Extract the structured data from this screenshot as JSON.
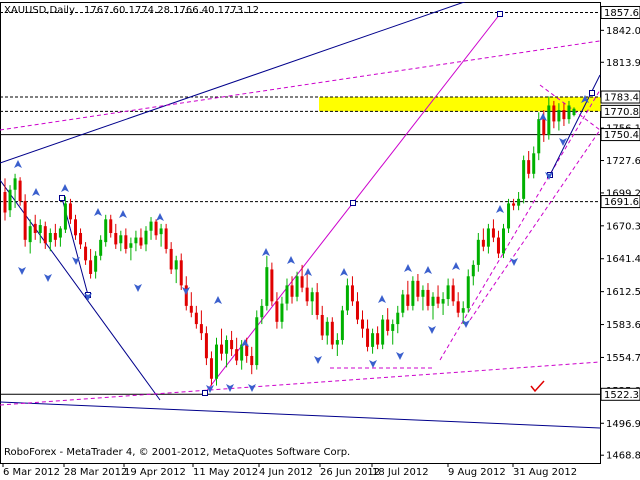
{
  "chart_data": {
    "type": "candlestick",
    "header": {
      "symbol": "XAUUSD,Daily",
      "ohlc": "1767.60 1774.28 1766.40 1773.12"
    },
    "footer": "RoboForex - MetaTrader 4, © 2001-2012, MetaQuotes Software Corp.",
    "ylim": [
      1462,
      1866
    ],
    "y_ticks": [
      1857.67,
      1842.0,
      1813.95,
      1783.42,
      1770.81,
      1756.15,
      1750.44,
      1727.65,
      1699.2,
      1691.6,
      1670.3,
      1641.4,
      1612.5,
      1583.6,
      1554.7,
      1525.8,
      1522.34,
      1496.9,
      1468.85
    ],
    "price_labels": [
      {
        "value": 1857.67,
        "color": "#ffffff"
      },
      {
        "value": 1783.42,
        "color": "#ffffff"
      },
      {
        "value": 1770.81,
        "color": "#ffffff"
      },
      {
        "value": 1750.44,
        "color": "#ffffff"
      },
      {
        "value": 1691.6,
        "color": "#ffffff"
      },
      {
        "value": 1522.34,
        "color": "#ffffff"
      }
    ],
    "x_labels": [
      "6 Mar 2012",
      "28 Mar 2012",
      "19 Apr 2012",
      "11 May 2012",
      "4 Jun 2012",
      "26 Jun 2012",
      "18 Jul 2012",
      "9 Aug 2012",
      "31 Aug 2012"
    ],
    "horizontal_levels": [
      {
        "value": 1857.67,
        "style": "dashed"
      },
      {
        "value": 1783.42,
        "style": "dashed"
      },
      {
        "value": 1770.81,
        "style": "dashed"
      },
      {
        "value": 1750.44,
        "style": "solid"
      },
      {
        "value": 1691.6,
        "style": "dashed"
      },
      {
        "value": 1522.34,
        "style": "solid"
      }
    ],
    "target_zone": {
      "from": 1770.81,
      "to": 1783.42,
      "color": "#ffff00"
    },
    "candles": [
      {
        "o": 1700,
        "h": 1712,
        "l": 1675,
        "c": 1682
      },
      {
        "o": 1684,
        "h": 1706,
        "l": 1678,
        "c": 1702
      },
      {
        "o": 1702,
        "h": 1716,
        "l": 1686,
        "c": 1712
      },
      {
        "o": 1710,
        "h": 1713,
        "l": 1688,
        "c": 1692
      },
      {
        "o": 1692,
        "h": 1698,
        "l": 1652,
        "c": 1658
      },
      {
        "o": 1656,
        "h": 1676,
        "l": 1646,
        "c": 1670
      },
      {
        "o": 1672,
        "h": 1680,
        "l": 1658,
        "c": 1664
      },
      {
        "o": 1664,
        "h": 1676,
        "l": 1655,
        "c": 1671
      },
      {
        "o": 1670,
        "h": 1674,
        "l": 1650,
        "c": 1655
      },
      {
        "o": 1656,
        "h": 1668,
        "l": 1648,
        "c": 1664
      },
      {
        "o": 1664,
        "h": 1672,
        "l": 1652,
        "c": 1658
      },
      {
        "o": 1660,
        "h": 1670,
        "l": 1652,
        "c": 1668
      },
      {
        "o": 1667,
        "h": 1696,
        "l": 1664,
        "c": 1690
      },
      {
        "o": 1690,
        "h": 1694,
        "l": 1672,
        "c": 1676
      },
      {
        "o": 1676,
        "h": 1680,
        "l": 1658,
        "c": 1662
      },
      {
        "o": 1664,
        "h": 1668,
        "l": 1650,
        "c": 1654
      },
      {
        "o": 1652,
        "h": 1656,
        "l": 1636,
        "c": 1640
      },
      {
        "o": 1640,
        "h": 1650,
        "l": 1624,
        "c": 1628
      },
      {
        "o": 1630,
        "h": 1648,
        "l": 1624,
        "c": 1644
      },
      {
        "o": 1644,
        "h": 1662,
        "l": 1640,
        "c": 1658
      },
      {
        "o": 1656,
        "h": 1680,
        "l": 1652,
        "c": 1676
      },
      {
        "o": 1676,
        "h": 1680,
        "l": 1660,
        "c": 1664
      },
      {
        "o": 1664,
        "h": 1672,
        "l": 1650,
        "c": 1654
      },
      {
        "o": 1655,
        "h": 1666,
        "l": 1648,
        "c": 1662
      },
      {
        "o": 1662,
        "h": 1668,
        "l": 1646,
        "c": 1650
      },
      {
        "o": 1651,
        "h": 1660,
        "l": 1640,
        "c": 1655
      },
      {
        "o": 1655,
        "h": 1666,
        "l": 1648,
        "c": 1660
      },
      {
        "o": 1660,
        "h": 1668,
        "l": 1650,
        "c": 1653
      },
      {
        "o": 1654,
        "h": 1670,
        "l": 1648,
        "c": 1666
      },
      {
        "o": 1666,
        "h": 1678,
        "l": 1658,
        "c": 1674
      },
      {
        "o": 1674,
        "h": 1676,
        "l": 1658,
        "c": 1662
      },
      {
        "o": 1663,
        "h": 1672,
        "l": 1652,
        "c": 1668
      },
      {
        "o": 1668,
        "h": 1672,
        "l": 1646,
        "c": 1650
      },
      {
        "o": 1650,
        "h": 1656,
        "l": 1628,
        "c": 1632
      },
      {
        "o": 1632,
        "h": 1644,
        "l": 1620,
        "c": 1640
      },
      {
        "o": 1640,
        "h": 1646,
        "l": 1614,
        "c": 1618
      },
      {
        "o": 1618,
        "h": 1626,
        "l": 1596,
        "c": 1600
      },
      {
        "o": 1600,
        "h": 1612,
        "l": 1590,
        "c": 1594
      },
      {
        "o": 1594,
        "h": 1600,
        "l": 1580,
        "c": 1584
      },
      {
        "o": 1584,
        "h": 1596,
        "l": 1570,
        "c": 1576
      },
      {
        "o": 1576,
        "h": 1582,
        "l": 1548,
        "c": 1554
      },
      {
        "o": 1554,
        "h": 1560,
        "l": 1530,
        "c": 1536
      },
      {
        "o": 1536,
        "h": 1572,
        "l": 1530,
        "c": 1566
      },
      {
        "o": 1566,
        "h": 1580,
        "l": 1552,
        "c": 1558
      },
      {
        "o": 1558,
        "h": 1574,
        "l": 1546,
        "c": 1570
      },
      {
        "o": 1570,
        "h": 1578,
        "l": 1556,
        "c": 1562
      },
      {
        "o": 1562,
        "h": 1572,
        "l": 1548,
        "c": 1552
      },
      {
        "o": 1552,
        "h": 1570,
        "l": 1544,
        "c": 1566
      },
      {
        "o": 1566,
        "h": 1572,
        "l": 1550,
        "c": 1556
      },
      {
        "o": 1556,
        "h": 1564,
        "l": 1540,
        "c": 1548
      },
      {
        "o": 1548,
        "h": 1596,
        "l": 1544,
        "c": 1590
      },
      {
        "o": 1590,
        "h": 1606,
        "l": 1584,
        "c": 1600
      },
      {
        "o": 1600,
        "h": 1644,
        "l": 1596,
        "c": 1634
      },
      {
        "o": 1632,
        "h": 1638,
        "l": 1600,
        "c": 1604
      },
      {
        "o": 1604,
        "h": 1612,
        "l": 1580,
        "c": 1586
      },
      {
        "o": 1586,
        "h": 1608,
        "l": 1580,
        "c": 1602
      },
      {
        "o": 1602,
        "h": 1624,
        "l": 1596,
        "c": 1618
      },
      {
        "o": 1618,
        "h": 1626,
        "l": 1602,
        "c": 1608
      },
      {
        "o": 1608,
        "h": 1630,
        "l": 1604,
        "c": 1626
      },
      {
        "o": 1626,
        "h": 1636,
        "l": 1612,
        "c": 1616
      },
      {
        "o": 1616,
        "h": 1628,
        "l": 1600,
        "c": 1604
      },
      {
        "o": 1604,
        "h": 1616,
        "l": 1592,
        "c": 1612
      },
      {
        "o": 1612,
        "h": 1620,
        "l": 1588,
        "c": 1592
      },
      {
        "o": 1592,
        "h": 1600,
        "l": 1570,
        "c": 1574
      },
      {
        "o": 1574,
        "h": 1590,
        "l": 1566,
        "c": 1586
      },
      {
        "o": 1586,
        "h": 1590,
        "l": 1562,
        "c": 1566
      },
      {
        "o": 1566,
        "h": 1576,
        "l": 1556,
        "c": 1570
      },
      {
        "o": 1570,
        "h": 1600,
        "l": 1566,
        "c": 1596
      },
      {
        "o": 1596,
        "h": 1624,
        "l": 1592,
        "c": 1618
      },
      {
        "o": 1618,
        "h": 1626,
        "l": 1600,
        "c": 1604
      },
      {
        "o": 1604,
        "h": 1612,
        "l": 1584,
        "c": 1588
      },
      {
        "o": 1588,
        "h": 1596,
        "l": 1572,
        "c": 1580
      },
      {
        "o": 1580,
        "h": 1588,
        "l": 1560,
        "c": 1564
      },
      {
        "o": 1564,
        "h": 1580,
        "l": 1558,
        "c": 1576
      },
      {
        "o": 1576,
        "h": 1582,
        "l": 1562,
        "c": 1566
      },
      {
        "o": 1566,
        "h": 1592,
        "l": 1562,
        "c": 1588
      },
      {
        "o": 1588,
        "h": 1598,
        "l": 1574,
        "c": 1578
      },
      {
        "o": 1578,
        "h": 1588,
        "l": 1566,
        "c": 1584
      },
      {
        "o": 1584,
        "h": 1600,
        "l": 1576,
        "c": 1594
      },
      {
        "o": 1594,
        "h": 1614,
        "l": 1590,
        "c": 1610
      },
      {
        "o": 1610,
        "h": 1622,
        "l": 1596,
        "c": 1600
      },
      {
        "o": 1600,
        "h": 1626,
        "l": 1596,
        "c": 1622
      },
      {
        "o": 1622,
        "h": 1628,
        "l": 1604,
        "c": 1608
      },
      {
        "o": 1608,
        "h": 1618,
        "l": 1596,
        "c": 1614
      },
      {
        "o": 1614,
        "h": 1620,
        "l": 1596,
        "c": 1600
      },
      {
        "o": 1600,
        "h": 1612,
        "l": 1588,
        "c": 1608
      },
      {
        "o": 1608,
        "h": 1618,
        "l": 1598,
        "c": 1602
      },
      {
        "o": 1602,
        "h": 1612,
        "l": 1592,
        "c": 1606
      },
      {
        "o": 1606,
        "h": 1624,
        "l": 1600,
        "c": 1618
      },
      {
        "o": 1618,
        "h": 1624,
        "l": 1600,
        "c": 1604
      },
      {
        "o": 1604,
        "h": 1612,
        "l": 1590,
        "c": 1594
      },
      {
        "o": 1594,
        "h": 1604,
        "l": 1584,
        "c": 1598
      },
      {
        "o": 1598,
        "h": 1632,
        "l": 1594,
        "c": 1626
      },
      {
        "o": 1626,
        "h": 1640,
        "l": 1618,
        "c": 1636
      },
      {
        "o": 1636,
        "h": 1664,
        "l": 1630,
        "c": 1658
      },
      {
        "o": 1658,
        "h": 1668,
        "l": 1648,
        "c": 1652
      },
      {
        "o": 1652,
        "h": 1672,
        "l": 1646,
        "c": 1668
      },
      {
        "o": 1668,
        "h": 1676,
        "l": 1656,
        "c": 1660
      },
      {
        "o": 1660,
        "h": 1666,
        "l": 1642,
        "c": 1646
      },
      {
        "o": 1646,
        "h": 1672,
        "l": 1642,
        "c": 1668
      },
      {
        "o": 1668,
        "h": 1694,
        "l": 1664,
        "c": 1690
      },
      {
        "o": 1690,
        "h": 1694,
        "l": 1684,
        "c": 1688
      },
      {
        "o": 1688,
        "h": 1700,
        "l": 1684,
        "c": 1694
      },
      {
        "o": 1694,
        "h": 1732,
        "l": 1690,
        "c": 1728
      },
      {
        "o": 1728,
        "h": 1736,
        "l": 1712,
        "c": 1716
      },
      {
        "o": 1716,
        "h": 1740,
        "l": 1712,
        "c": 1734
      },
      {
        "o": 1734,
        "h": 1770,
        "l": 1728,
        "c": 1764
      },
      {
        "o": 1764,
        "h": 1772,
        "l": 1744,
        "c": 1750
      },
      {
        "o": 1750,
        "h": 1784,
        "l": 1746,
        "c": 1776
      },
      {
        "o": 1776,
        "h": 1780,
        "l": 1756,
        "c": 1762
      },
      {
        "o": 1762,
        "h": 1778,
        "l": 1754,
        "c": 1772
      },
      {
        "o": 1772,
        "h": 1778,
        "l": 1758,
        "c": 1764
      },
      {
        "o": 1764,
        "h": 1780,
        "l": 1760,
        "c": 1776
      },
      {
        "o": 1767.6,
        "h": 1774.28,
        "l": 1766.4,
        "c": 1773.12
      }
    ]
  }
}
